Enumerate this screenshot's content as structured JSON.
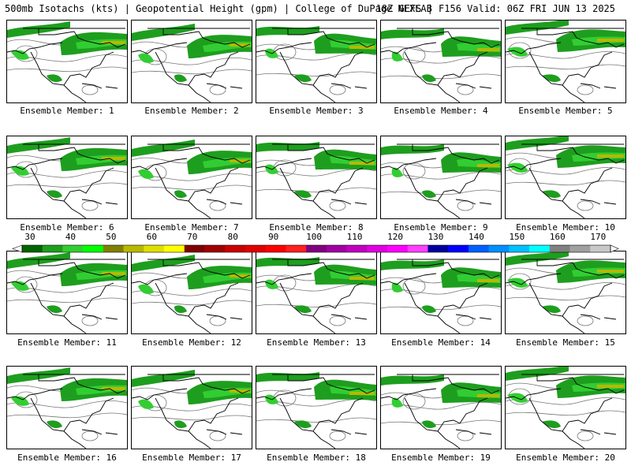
{
  "header": {
    "left": "500mb Isotachs (kts) | Geopotential Height (gpm) | College of DuPage NEXLAB",
    "right": "18Z GEFS | F156 Valid: 06Z FRI JUN 13 2025"
  },
  "panels": [
    {
      "caption": "Ensemble Member: 1"
    },
    {
      "caption": "Ensemble Member: 2"
    },
    {
      "caption": "Ensemble Member: 3"
    },
    {
      "caption": "Ensemble Member: 4"
    },
    {
      "caption": "Ensemble Member: 5"
    },
    {
      "caption": "Ensemble Member: 6"
    },
    {
      "caption": "Ensemble Member: 7"
    },
    {
      "caption": "Ensemble Member: 8"
    },
    {
      "caption": "Ensemble Member: 9"
    },
    {
      "caption": "Ensemble Member: 10"
    },
    {
      "caption": "Ensemble Member: 11"
    },
    {
      "caption": "Ensemble Member: 12"
    },
    {
      "caption": "Ensemble Member: 13"
    },
    {
      "caption": "Ensemble Member: 14"
    },
    {
      "caption": "Ensemble Member: 15"
    },
    {
      "caption": "Ensemble Member: 16"
    },
    {
      "caption": "Ensemble Member: 17"
    },
    {
      "caption": "Ensemble Member: 18"
    },
    {
      "caption": "Ensemble Member: 19"
    },
    {
      "caption": "Ensemble Member: 20"
    }
  ],
  "colorbar": {
    "labels": [
      "30",
      "40",
      "50",
      "60",
      "70",
      "80",
      "90",
      "100",
      "110",
      "120",
      "130",
      "140",
      "150",
      "160",
      "170"
    ],
    "colors": [
      "#006400",
      "#1e9e1e",
      "#32cd32",
      "#00ff00",
      "#808000",
      "#b8b800",
      "#e0e000",
      "#ffff00",
      "#800000",
      "#a00000",
      "#c80000",
      "#e00000",
      "#ff0000",
      "#ff2020",
      "#800080",
      "#a000a0",
      "#c000c0",
      "#e000e0",
      "#ff00ff",
      "#ff40ff",
      "#0000a0",
      "#0000ff",
      "#0060ff",
      "#0090ff",
      "#00c0ff",
      "#00ffff",
      "#808080",
      "#a0a0a0",
      "#c8c8c8"
    ]
  }
}
